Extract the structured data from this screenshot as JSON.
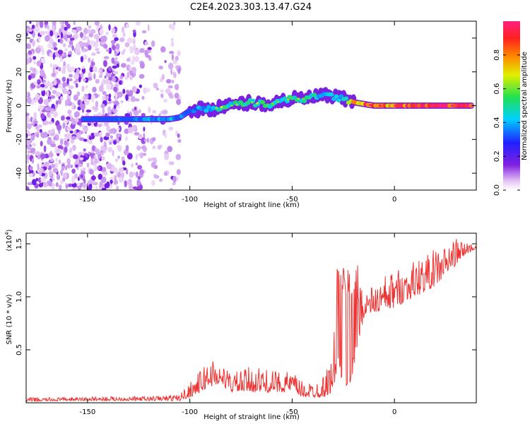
{
  "figure_title": "C2E4.2023.303.13.47.G24",
  "chart_data": [
    {
      "type": "heatmap",
      "title": "",
      "xlabel": "Height of straight line (km)",
      "ylabel": "Frequency (Hz)",
      "xlim": [
        -180,
        40
      ],
      "ylim": [
        -50,
        50
      ],
      "x_ticks": [
        -150,
        -100,
        -50,
        0
      ],
      "x_tick_labels": [
        "-150",
        "-100",
        "-50",
        "0"
      ],
      "y_ticks": [
        -40,
        -20,
        0,
        20,
        40
      ],
      "y_tick_labels": [
        "-40",
        "-20",
        "0",
        "20",
        "40"
      ],
      "colorbar": {
        "label": "Normalized spectral amplitude",
        "range": [
          0,
          1
        ],
        "ticks": [
          0,
          0.2,
          0.4,
          0.6,
          0.8
        ],
        "tick_labels": [
          "0.0",
          "0.2",
          "0.4",
          "0.6",
          "0.8"
        ]
      },
      "ridge": {
        "x": [
          -152,
          -140,
          -130,
          -120,
          -110,
          -105,
          -100,
          -95,
          -90,
          -85,
          -80,
          -75,
          -70,
          -65,
          -60,
          -55,
          -50,
          -45,
          -40,
          -35,
          -30,
          -25,
          -20,
          -15,
          -10,
          -5,
          0,
          10,
          20,
          30,
          38
        ],
        "freq": [
          -8,
          -8,
          -8,
          -8,
          -8,
          -7,
          -3,
          -2,
          -2,
          -1,
          0,
          1,
          2,
          1,
          1,
          3,
          4,
          4,
          5,
          6,
          5,
          4,
          2,
          1,
          0,
          0,
          0,
          0,
          0,
          0,
          0
        ],
        "amplitude": [
          0.3,
          0.3,
          0.35,
          0.4,
          0.45,
          0.4,
          0.3,
          0.45,
          0.4,
          0.6,
          0.5,
          0.55,
          0.5,
          0.6,
          0.5,
          0.5,
          0.55,
          0.5,
          0.5,
          0.45,
          0.5,
          0.45,
          0.85,
          0.9,
          0.9,
          0.85,
          0.9,
          0.95,
          0.95,
          1.0,
          1.0
        ]
      },
      "noise_region_x": [
        -180,
        -105
      ]
    },
    {
      "type": "line",
      "title": "",
      "xlabel": "Height of straight line (km)",
      "ylabel": "SNR (10 * v/v)",
      "y_multiplier_label": "(x10",
      "y_multiplier_exponent": "4",
      "xlim": [
        -180,
        40
      ],
      "ylim": [
        0,
        1.6
      ],
      "x_ticks": [
        -150,
        -100,
        -50,
        0
      ],
      "x_tick_labels": [
        "-150",
        "-100",
        "-50",
        "0"
      ],
      "y_ticks": [
        0.5,
        1.0,
        1.5
      ],
      "y_tick_labels": [
        "0.5",
        "1.0",
        "1.5"
      ],
      "color": "#ee3333",
      "series": [
        {
          "x": [
            -180,
            -160,
            -140,
            -120,
            -105,
            -100,
            -95,
            -90,
            -85,
            -80,
            -75,
            -70,
            -60,
            -50,
            -45,
            -40,
            -35,
            -30,
            -28,
            -25,
            -22,
            -18,
            -15,
            -10,
            -5,
            0,
            5,
            10,
            15,
            20,
            25,
            30,
            35,
            40
          ],
          "envelope_low": [
            0.01,
            0.02,
            0.02,
            0.02,
            0.02,
            0.05,
            0.1,
            0.15,
            0.18,
            0.1,
            0.1,
            0.1,
            0.1,
            0.1,
            0.05,
            0.05,
            0.05,
            0.1,
            0.3,
            0.15,
            0.1,
            0.5,
            0.8,
            0.85,
            0.85,
            0.9,
            0.95,
            1.0,
            1.05,
            1.1,
            1.2,
            1.3,
            1.4,
            1.45
          ],
          "envelope_high": [
            0.05,
            0.05,
            0.06,
            0.06,
            0.08,
            0.2,
            0.3,
            0.45,
            0.35,
            0.3,
            0.3,
            0.35,
            0.3,
            0.3,
            0.2,
            0.2,
            0.25,
            0.45,
            1.35,
            1.3,
            1.3,
            1.3,
            1.1,
            1.1,
            1.2,
            1.25,
            1.3,
            1.35,
            1.4,
            1.45,
            1.5,
            1.55,
            1.52,
            1.5
          ]
        }
      ]
    }
  ]
}
